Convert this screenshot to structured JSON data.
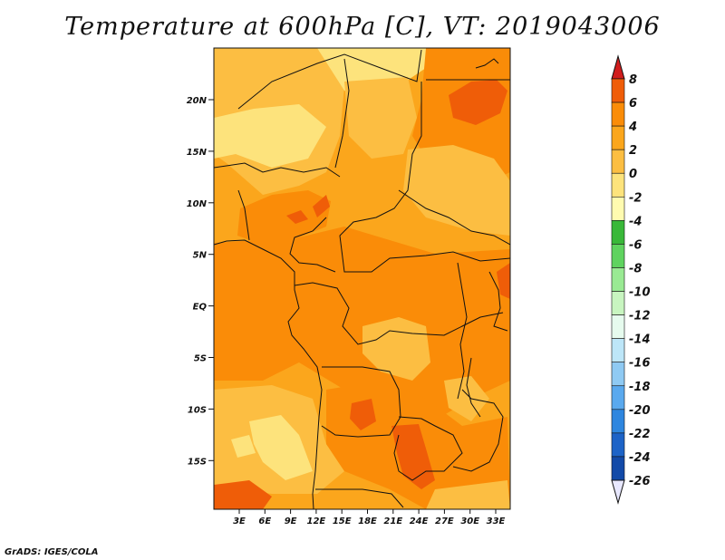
{
  "title": "Temperature at 600hPa [C], VT: 2019043006",
  "credit": "GrADS: IGES/COLA",
  "lat_labels": [
    "20N",
    "15N",
    "10N",
    "5N",
    "EQ",
    "5S",
    "10S",
    "15S"
  ],
  "lon_labels": [
    "3E",
    "6E",
    "9E",
    "12E",
    "15E",
    "18E",
    "21E",
    "24E",
    "27E",
    "30E",
    "33E"
  ],
  "colorbar": {
    "labels": [
      "8",
      "6",
      "4",
      "2",
      "0",
      "-2",
      "-4",
      "-6",
      "-8",
      "-10",
      "-12",
      "-14",
      "-16",
      "-18",
      "-20",
      "-22",
      "-24",
      "-26"
    ],
    "colors": [
      "#e83b13",
      "#ef5d08",
      "#fa8c08",
      "#fba61c",
      "#fcbe42",
      "#fde37c",
      "#fffbb0",
      "#39b839",
      "#5fd35f",
      "#99ea93",
      "#c8f5c0",
      "#e6fbee",
      "#bde6f8",
      "#8fcaf3",
      "#5aa9ee",
      "#2e86df",
      "#1d63c7",
      "#124aa8",
      "#0d2f86",
      "#0a1a62"
    ],
    "top_arrow_color": "#d11d1d",
    "bottom_arrow_color": "#e8e8ff"
  },
  "legend_title": "",
  "units": "C"
}
